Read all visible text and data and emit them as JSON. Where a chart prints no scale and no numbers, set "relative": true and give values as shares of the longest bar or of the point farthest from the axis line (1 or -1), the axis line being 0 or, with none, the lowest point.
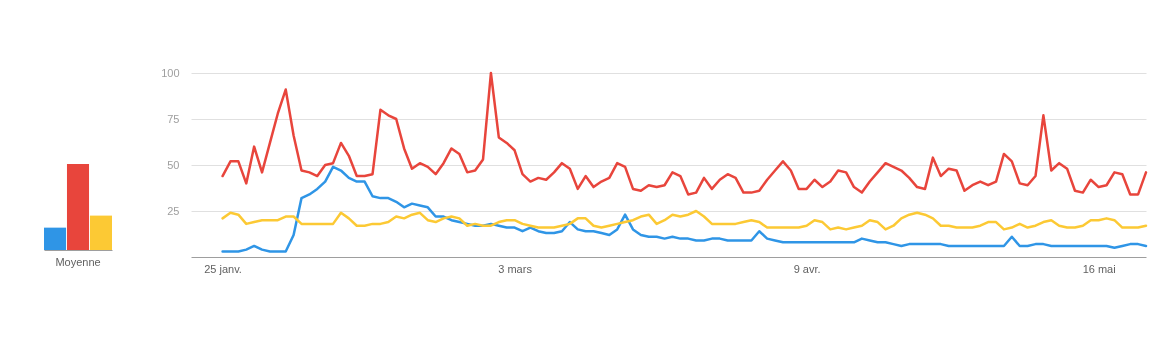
{
  "chart_data": [
    {
      "type": "bar",
      "categories": [
        "Moyenne"
      ],
      "relative": true,
      "tick_labels": "x",
      "series": [
        {
          "color": "#2f95e6",
          "values": [
            0.26
          ]
        },
        {
          "color": "#e8453c",
          "values": [
            1
          ]
        },
        {
          "color": "#fcc934",
          "values": [
            0.4
          ]
        }
      ]
    },
    {
      "type": "line",
      "grid": "y",
      "xlim": [
        "--01-21",
        "--05-22"
      ],
      "ylim": [
        0,
        100
      ],
      "yticks": [
        25,
        50,
        75,
        100
      ],
      "xticks": [
        {
          "value": "--01-25",
          "label": "25 janv."
        },
        {
          "value": "--03-03",
          "label": "3 mars"
        },
        {
          "value": "--04-09",
          "label": "9 avr."
        },
        {
          "value": "--05-16",
          "label": "16 mai"
        }
      ],
      "x": [
        "--01-25",
        "--01-26",
        "--01-27",
        "--01-28",
        "--01-29",
        "--01-30",
        "--01-31",
        "--02-01",
        "--02-02",
        "--02-03",
        "--02-04",
        "--02-05",
        "--02-06",
        "--02-07",
        "--02-08",
        "--02-09",
        "--02-10",
        "--02-11",
        "--02-12",
        "--02-13",
        "--02-14",
        "--02-15",
        "--02-16",
        "--02-17",
        "--02-18",
        "--02-19",
        "--02-20",
        "--02-21",
        "--02-22",
        "--02-23",
        "--02-24",
        "--02-25",
        "--02-26",
        "--02-27",
        "--02-28",
        "--03-01",
        "--03-02",
        "--03-03",
        "--03-04",
        "--03-05",
        "--03-06",
        "--03-07",
        "--03-08",
        "--03-09",
        "--03-10",
        "--03-11",
        "--03-12",
        "--03-13",
        "--03-14",
        "--03-15",
        "--03-16",
        "--03-17",
        "--03-18",
        "--03-19",
        "--03-20",
        "--03-21",
        "--03-22",
        "--03-23",
        "--03-24",
        "--03-25",
        "--03-26",
        "--03-27",
        "--03-28",
        "--03-29",
        "--03-30",
        "--03-31",
        "--04-01",
        "--04-02",
        "--04-03",
        "--04-04",
        "--04-05",
        "--04-06",
        "--04-07",
        "--04-08",
        "--04-09",
        "--04-10",
        "--04-11",
        "--04-12",
        "--04-13",
        "--04-14",
        "--04-15",
        "--04-16",
        "--04-17",
        "--04-18",
        "--04-19",
        "--04-20",
        "--04-21",
        "--04-22",
        "--04-23",
        "--04-24",
        "--04-25",
        "--04-26",
        "--04-27",
        "--04-28",
        "--04-29",
        "--04-30",
        "--05-01",
        "--05-02",
        "--05-03",
        "--05-04",
        "--05-05",
        "--05-06",
        "--05-07",
        "--05-08",
        "--05-09",
        "--05-10",
        "--05-11",
        "--05-12",
        "--05-13",
        "--05-14",
        "--05-15",
        "--05-16",
        "--05-17",
        "--05-18",
        "--05-19",
        "--05-20",
        "--05-21",
        "--05-22"
      ],
      "series": [
        {
          "color": "#2f95e6",
          "values": [
            3,
            3,
            3,
            4,
            6,
            4,
            3,
            3,
            3,
            12,
            32,
            34,
            37,
            41,
            49,
            47,
            43,
            41,
            41,
            33,
            32,
            32,
            30,
            27,
            29,
            28,
            27,
            22,
            22,
            20,
            19,
            18,
            17,
            17,
            18,
            17,
            16,
            16,
            14,
            16,
            14,
            13,
            13,
            14,
            19,
            15,
            14,
            14,
            13,
            12,
            15,
            23,
            15,
            12,
            11,
            11,
            10,
            11,
            10,
            10,
            9,
            9,
            10,
            10,
            9,
            9,
            9,
            9,
            14,
            10,
            9,
            8,
            8,
            8,
            8,
            8,
            8,
            8,
            8,
            8,
            8,
            10,
            9,
            8,
            8,
            7,
            6,
            7,
            7,
            7,
            7,
            7,
            6,
            6,
            6,
            6,
            6,
            6,
            6,
            6,
            11,
            6,
            6,
            7,
            7,
            6,
            6,
            6,
            6,
            6,
            6,
            6,
            6,
            5,
            6,
            7,
            7,
            6
          ]
        },
        {
          "color": "#e8453c",
          "values": [
            44,
            52,
            52,
            40,
            60,
            46,
            62,
            78,
            91,
            66,
            47,
            46,
            44,
            50,
            51,
            62,
            55,
            44,
            44,
            45,
            80,
            77,
            75,
            59,
            48,
            51,
            49,
            45,
            51,
            59,
            56,
            46,
            47,
            53,
            100,
            65,
            62,
            58,
            45,
            41,
            43,
            42,
            46,
            51,
            48,
            37,
            44,
            38,
            41,
            43,
            51,
            49,
            37,
            36,
            39,
            38,
            39,
            46,
            44,
            34,
            35,
            43,
            37,
            42,
            45,
            43,
            35,
            35,
            36,
            42,
            47,
            52,
            47,
            37,
            37,
            42,
            38,
            41,
            47,
            46,
            38,
            35,
            41,
            46,
            51,
            49,
            47,
            43,
            38,
            37,
            54,
            44,
            48,
            47,
            36,
            39,
            41,
            39,
            41,
            56,
            52,
            40,
            39,
            44,
            77,
            47,
            51,
            48,
            36,
            35,
            42,
            38,
            39,
            46,
            45,
            34,
            34,
            46
          ]
        },
        {
          "color": "#fcc934",
          "values": [
            21,
            24,
            23,
            18,
            19,
            20,
            20,
            20,
            22,
            22,
            18,
            18,
            18,
            18,
            18,
            24,
            21,
            17,
            17,
            18,
            18,
            19,
            22,
            21,
            23,
            24,
            20,
            19,
            21,
            22,
            21,
            17,
            18,
            17,
            17,
            19,
            20,
            20,
            18,
            17,
            16,
            16,
            16,
            17,
            18,
            21,
            21,
            17,
            16,
            17,
            18,
            19,
            20,
            22,
            23,
            18,
            20,
            23,
            22,
            23,
            25,
            22,
            18,
            18,
            18,
            18,
            19,
            20,
            19,
            16,
            16,
            16,
            16,
            16,
            17,
            20,
            19,
            15,
            16,
            15,
            16,
            17,
            20,
            19,
            15,
            17,
            21,
            23,
            24,
            23,
            21,
            17,
            17,
            16,
            16,
            16,
            17,
            19,
            19,
            15,
            16,
            18,
            16,
            17,
            19,
            20,
            17,
            16,
            16,
            17,
            20,
            20,
            21,
            20,
            16,
            16,
            16,
            17
          ]
        }
      ]
    }
  ]
}
